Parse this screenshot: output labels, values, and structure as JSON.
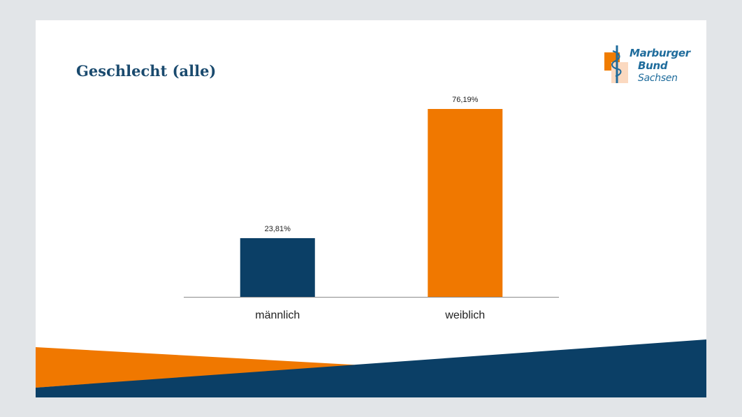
{
  "slide": {
    "title": "Geschlecht (alle)",
    "logo": {
      "lines": [
        "Marburger",
        "Bund",
        "Sachsen"
      ],
      "icon": "aesculapian-staff-icon",
      "colors": {
        "text": "#1f6c9c",
        "accent": "#f07c00",
        "light": "#fbd9c0"
      }
    }
  },
  "colors": {
    "background": "#e2e5e8",
    "slide": "#ffffff",
    "title": "#1a4a6e",
    "navy": "#0b3f66",
    "orange": "#f07800",
    "axis": "#8c8c8c"
  },
  "chart_data": {
    "type": "bar",
    "title": "",
    "xlabel": "",
    "ylabel": "",
    "categories": [
      "männlich",
      "weiblich"
    ],
    "values": [
      23.81,
      76.19
    ],
    "value_labels": [
      "23,81%",
      "76,19%"
    ],
    "bar_colors": [
      "#0b3f66",
      "#f07800"
    ],
    "ylim": [
      0,
      76.19
    ],
    "grid": false,
    "legend": "none"
  }
}
